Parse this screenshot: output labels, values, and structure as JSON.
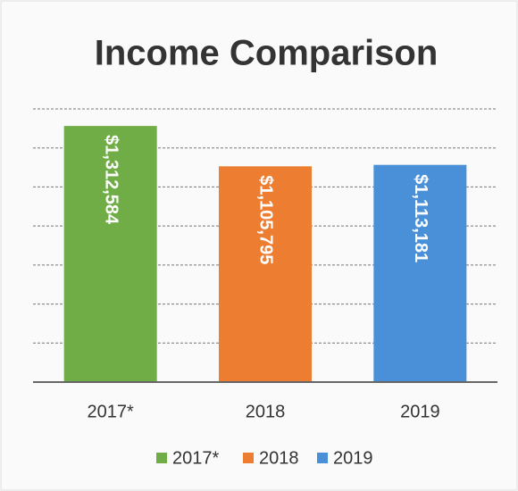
{
  "chart_data": {
    "type": "bar",
    "title": "Income Comparison",
    "categories": [
      "2017*",
      "2018",
      "2019"
    ],
    "values": [
      1312584,
      1105795,
      1113181
    ],
    "value_labels": [
      "$1,312,584",
      "$1,105,795",
      "$1,113,181"
    ],
    "colors": [
      "#70ad47",
      "#ed7d31",
      "#4a90d9"
    ],
    "ylim": [
      0,
      1400000
    ],
    "yticks": [
      0,
      200000,
      400000,
      600000,
      800000,
      1000000,
      1200000,
      1400000
    ],
    "grid": true,
    "legend": "bottom"
  }
}
